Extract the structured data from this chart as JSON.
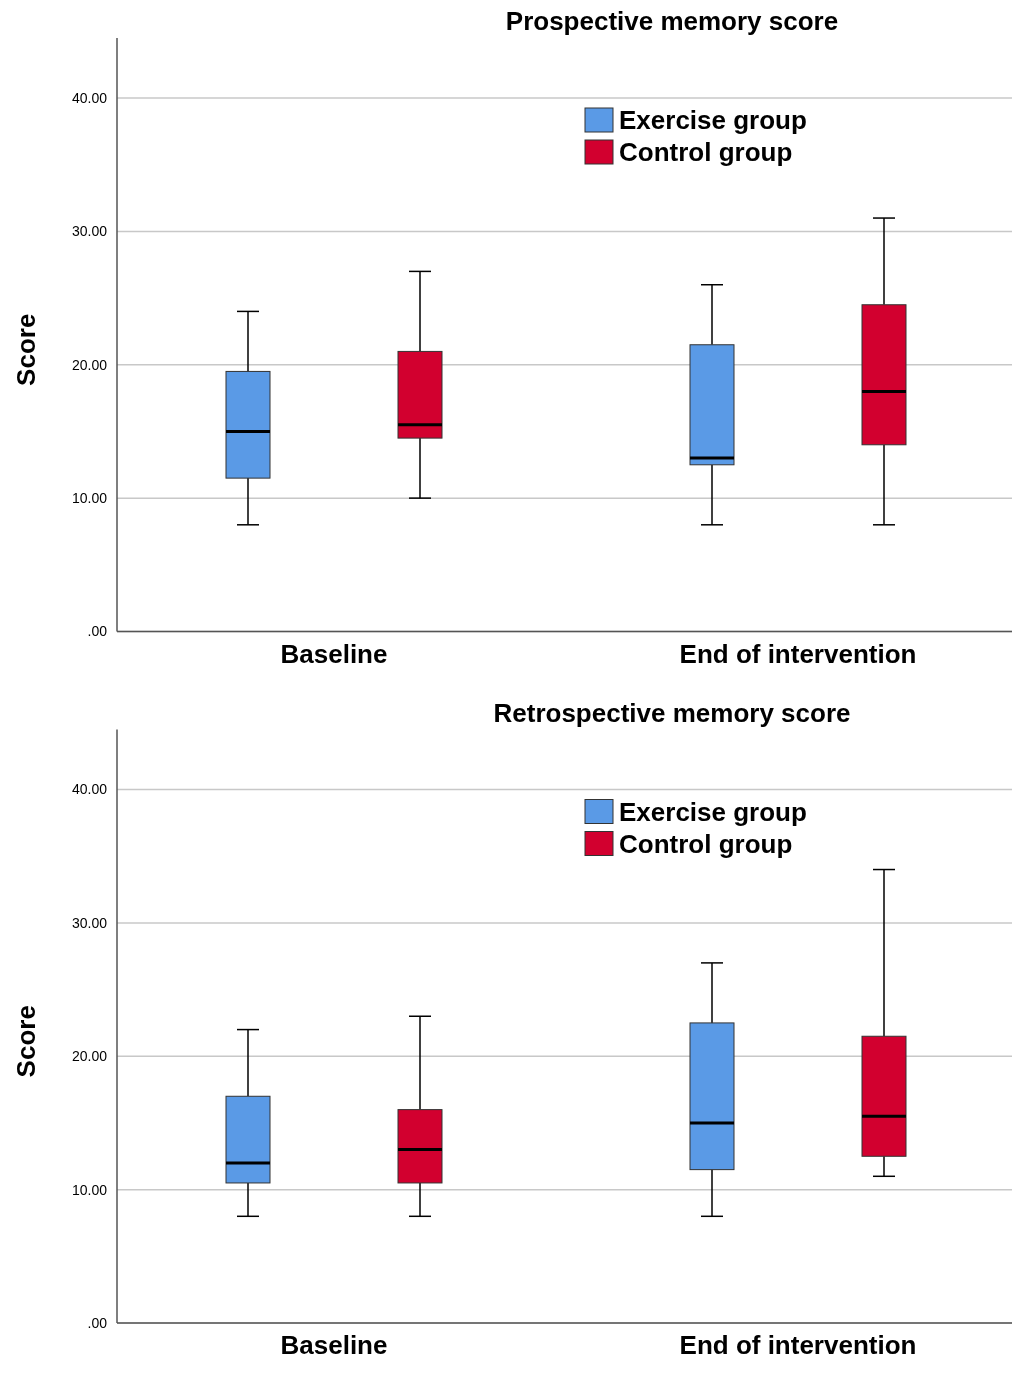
{
  "chart_data": [
    {
      "type": "box",
      "title": "Prospective memory score",
      "ylabel": "Score",
      "categories": [
        "Baseline",
        "End of intervention"
      ],
      "ylim": [
        0,
        44.5
      ],
      "yticks": [
        {
          "value": 0,
          "label": ".00"
        },
        {
          "value": 10,
          "label": "10.00"
        },
        {
          "value": 20,
          "label": "20.00"
        },
        {
          "value": 30,
          "label": "30.00"
        },
        {
          "value": 40,
          "label": "40.00"
        }
      ],
      "grid": "y",
      "legend": "top right",
      "series": [
        {
          "name": "Exercise group",
          "color": "#5a9ae6",
          "boxes": [
            {
              "low": 8,
              "q1": 11.5,
              "median": 15,
              "q3": 19.5,
              "high": 24
            },
            {
              "low": 8,
              "q1": 12.5,
              "median": 13,
              "q3": 21.5,
              "high": 26
            }
          ]
        },
        {
          "name": "Control group",
          "color": "#d2002f",
          "boxes": [
            {
              "low": 10,
              "q1": 14.5,
              "median": 15.5,
              "q3": 21,
              "high": 27
            },
            {
              "low": 8,
              "q1": 14,
              "median": 18,
              "q3": 24.5,
              "high": 31
            }
          ]
        }
      ]
    },
    {
      "type": "box",
      "title": "Retrospective memory score",
      "ylabel": "Score",
      "categories": [
        "Baseline",
        "End of intervention"
      ],
      "ylim": [
        0,
        44.5
      ],
      "yticks": [
        {
          "value": 0,
          "label": ".00"
        },
        {
          "value": 10,
          "label": "10.00"
        },
        {
          "value": 20,
          "label": "20.00"
        },
        {
          "value": 30,
          "label": "30.00"
        },
        {
          "value": 40,
          "label": "40.00"
        }
      ],
      "grid": "y",
      "legend": "top right",
      "series": [
        {
          "name": "Exercise group",
          "color": "#5a9ae6",
          "boxes": [
            {
              "low": 8,
              "q1": 10.5,
              "median": 12,
              "q3": 17,
              "high": 22
            },
            {
              "low": 8,
              "q1": 11.5,
              "median": 15,
              "q3": 22.5,
              "high": 27
            }
          ]
        },
        {
          "name": "Control group",
          "color": "#d2002f",
          "boxes": [
            {
              "low": 8,
              "q1": 10.5,
              "median": 13,
              "q3": 16,
              "high": 23
            },
            {
              "low": 11,
              "q1": 12.5,
              "median": 15.5,
              "q3": 21.5,
              "high": 34
            }
          ]
        }
      ]
    }
  ]
}
